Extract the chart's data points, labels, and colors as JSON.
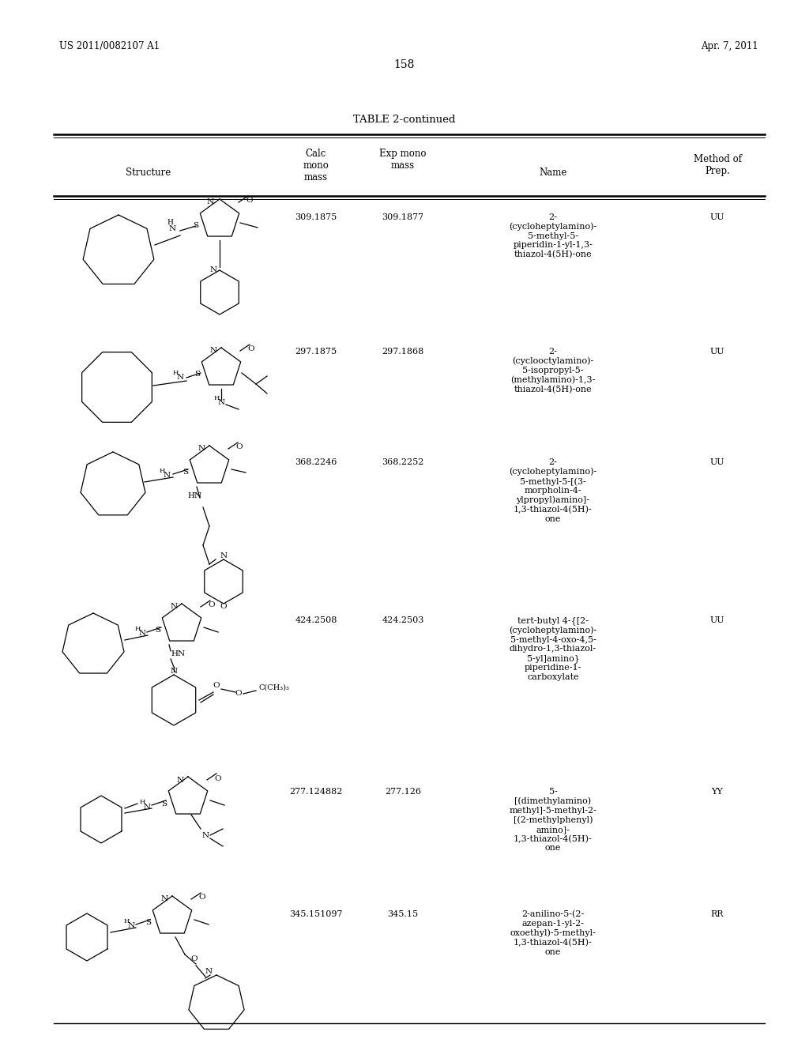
{
  "page_number": "158",
  "patent_number": "US 2011/0082107 A1",
  "date": "Apr. 7, 2011",
  "table_title": "TABLE 2-continued",
  "background_color": "#ffffff",
  "text_color": "#000000",
  "rows": [
    {
      "calc_mass": "309.1875",
      "exp_mass": "309.1877",
      "name": "2-\n(cycloheptylamino)-\n5-methyl-5-\npiperidin-1-yl-1,3-\nthiazol-4(5H)-one",
      "method": "UU"
    },
    {
      "calc_mass": "297.1875",
      "exp_mass": "297.1868",
      "name": "2-\n(cyclooctylamino)-\n5-isopropyl-5-\n(methylamino)-1,3-\nthiazol-4(5H)-one",
      "method": "UU"
    },
    {
      "calc_mass": "368.2246",
      "exp_mass": "368.2252",
      "name": "2-\n(cycloheptylamino)-\n5-methyl-5-[(3-\nmorpholin-4-\nylpropyl)amino]-\n1,3-thiazol-4(5H)-\none",
      "method": "UU"
    },
    {
      "calc_mass": "424.2508",
      "exp_mass": "424.2503",
      "name": "tert-butyl 4-{[2-\n(cycloheptylamino)-\n5-methyl-4-oxo-4,5-\ndihydro-1,3-thiazol-\n5-yl]amino}\npiperidine-1-\ncarboxylate",
      "method": "UU"
    },
    {
      "calc_mass": "277.124882",
      "exp_mass": "277.126",
      "name": "5-\n[(dimethylamino)\nmethyl]-5-methyl-2-\n[(2-methylphenyl)\namino]-\n1,3-thiazol-4(5H)-\none",
      "method": "YY"
    },
    {
      "calc_mass": "345.151097",
      "exp_mass": "345.15",
      "name": "2-anilino-5-(2-\nazepan-1-yl-2-\noxoethyl)-5-methyl-\n1,3-thiazol-4(5H)-\none",
      "method": "RR"
    }
  ]
}
